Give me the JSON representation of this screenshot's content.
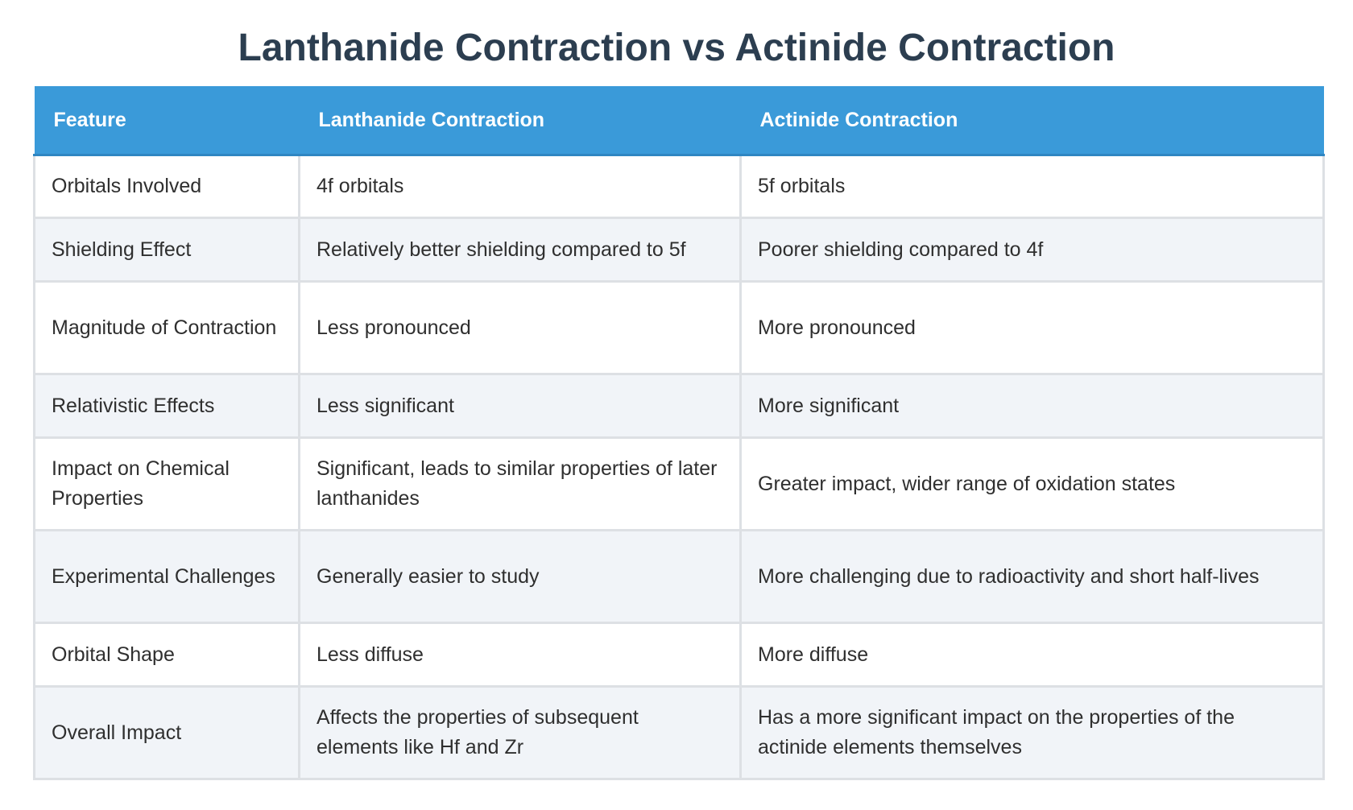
{
  "title": "Lanthanide Contraction vs Actinide Contraction",
  "table": {
    "headers": [
      "Feature",
      "Lanthanide Contraction",
      "Actinide Contraction"
    ],
    "rows": [
      [
        "Orbitals Involved",
        "4f orbitals",
        "5f orbitals"
      ],
      [
        "Shielding Effect",
        "Relatively better shielding compared to 5f",
        "Poorer shielding compared to 4f"
      ],
      [
        "Magnitude of Contraction",
        "Less pronounced",
        "More pronounced"
      ],
      [
        "Relativistic Effects",
        "Less significant",
        "More significant"
      ],
      [
        "Impact on Chemical Properties",
        "Significant, leads to similar properties of later lanthanides",
        "Greater impact, wider range of oxidation states"
      ],
      [
        "Experimental Challenges",
        "Generally easier to study",
        "More challenging due to radioactivity and short half-lives"
      ],
      [
        "Orbital Shape",
        "Less diffuse",
        "More diffuse"
      ],
      [
        "Overall Impact",
        "Affects the properties of subsequent elements like Hf and Zr",
        "Has a more significant impact on the properties of the actinide elements themselves"
      ]
    ]
  },
  "colors": {
    "header_bg": "#3a9ad9",
    "title": "#2c3e50",
    "alt_row": "#f1f4f8"
  }
}
